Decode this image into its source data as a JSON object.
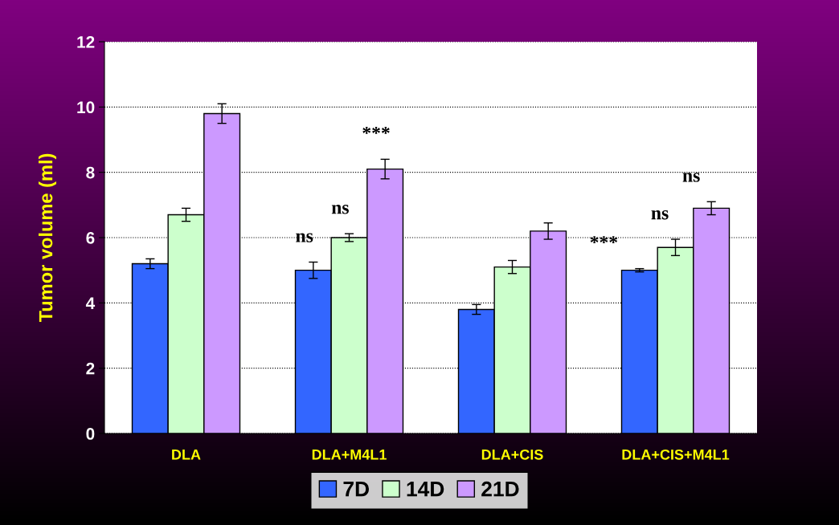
{
  "chart_data": {
    "type": "bar",
    "ylabel": "Tumor volume (ml)",
    "categories": [
      "DLA",
      "DLA+M4L1",
      "DLA+CIS",
      "DLA+CIS+M4L1"
    ],
    "series": [
      {
        "name": "7D",
        "color": "#3366ff",
        "values": [
          5.2,
          5.0,
          3.8,
          5.0
        ],
        "errors": [
          0.15,
          0.25,
          0.15,
          0.05
        ]
      },
      {
        "name": "14D",
        "color": "#ccffcc",
        "values": [
          6.7,
          6.0,
          5.1,
          5.7
        ],
        "errors": [
          0.2,
          0.12,
          0.2,
          0.25
        ]
      },
      {
        "name": "21D",
        "color": "#cc99ff",
        "values": [
          9.8,
          8.1,
          6.2,
          6.9
        ],
        "errors": [
          0.3,
          0.3,
          0.25,
          0.2
        ]
      }
    ],
    "ylim": [
      0,
      12
    ],
    "yticks": [
      0,
      2,
      4,
      6,
      8,
      10,
      12
    ],
    "grid": "y",
    "legend": "bottom",
    "annotations": [
      "ns",
      "ns",
      "***",
      "***",
      "ns",
      "ns"
    ]
  }
}
